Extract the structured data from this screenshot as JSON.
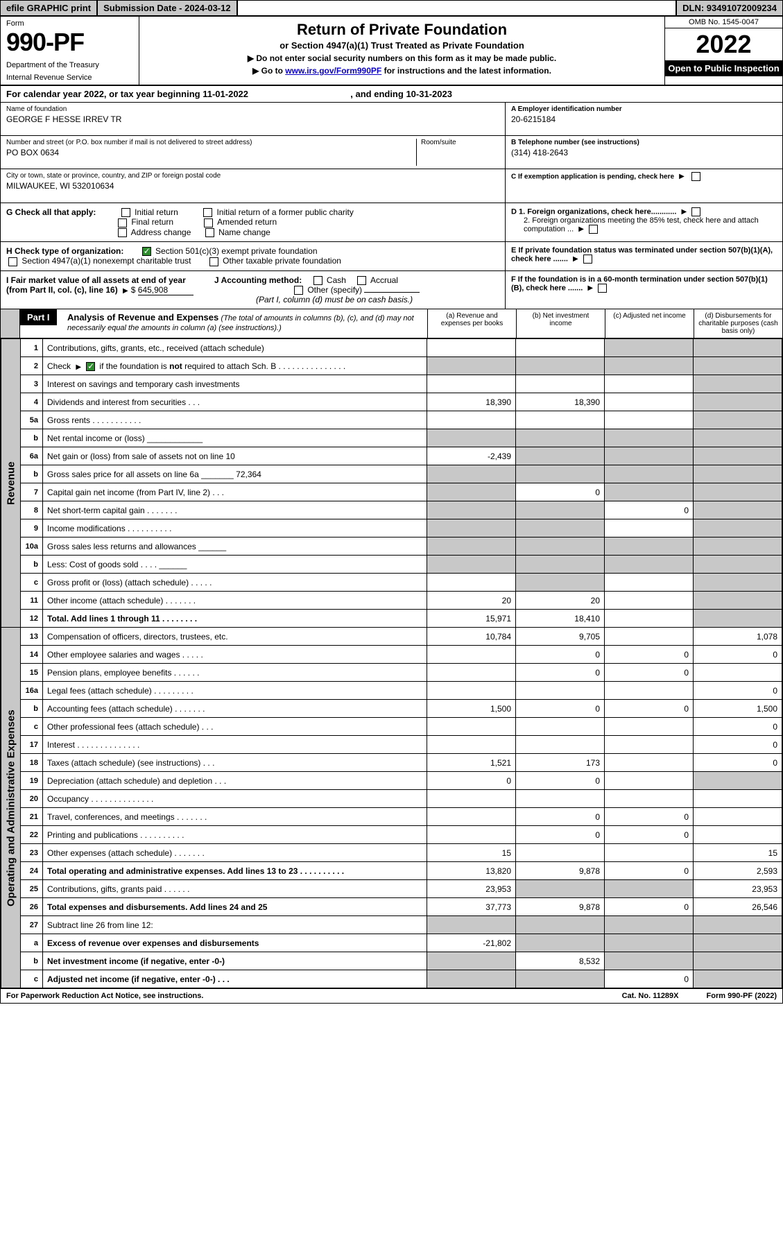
{
  "topbar": {
    "efile": "efile GRAPHIC print",
    "submission_label": "Submission Date - 2024-03-12",
    "dln": "DLN: 93491072009234"
  },
  "header": {
    "form_word": "Form",
    "form_no": "990-PF",
    "dept": "Department of the Treasury",
    "irs": "Internal Revenue Service",
    "title": "Return of Private Foundation",
    "subtitle": "or Section 4947(a)(1) Trust Treated as Private Foundation",
    "note1": "▶ Do not enter social security numbers on this form as it may be made public.",
    "note2_pre": "▶ Go to ",
    "note2_link": "www.irs.gov/Form990PF",
    "note2_post": " for instructions and the latest information.",
    "omb": "OMB No. 1545-0047",
    "year": "2022",
    "open": "Open to Public Inspection"
  },
  "cal_year": {
    "text_a": "For calendar year 2022, or tax year beginning ",
    "begin": "11-01-2022",
    "text_b": " , and ending ",
    "end": "10-31-2023"
  },
  "id": {
    "name_lbl": "Name of foundation",
    "name_val": "GEORGE F HESSE IRREV TR",
    "addr_lbl": "Number and street (or P.O. box number if mail is not delivered to street address)",
    "addr_val": "PO BOX 0634",
    "room_lbl": "Room/suite",
    "city_lbl": "City or town, state or province, country, and ZIP or foreign postal code",
    "city_val": "MILWAUKEE, WI  532010634",
    "ein_lbl": "A Employer identification number",
    "ein_val": "20-6215184",
    "tel_lbl": "B Telephone number (see instructions)",
    "tel_val": "(314) 418-2643",
    "c_lbl": "C If exemption application is pending, check here",
    "d1": "D 1. Foreign organizations, check here............",
    "d2": "2. Foreign organizations meeting the 85% test, check here and attach computation ...",
    "e": "E  If private foundation status was terminated under section 507(b)(1)(A), check here .......",
    "f": "F  If the foundation is in a 60-month termination under section 507(b)(1)(B), check here .......",
    "g_lbl": "G Check all that apply:",
    "g_opts": [
      "Initial return",
      "Initial return of a former public charity",
      "Final return",
      "Amended return",
      "Address change",
      "Name change"
    ],
    "h_lbl": "H Check type of organization:",
    "h1": "Section 501(c)(3) exempt private foundation",
    "h2": "Section 4947(a)(1) nonexempt charitable trust",
    "h3": "Other taxable private foundation",
    "i_lbl": "I Fair market value of all assets at end of year (from Part II, col. (c), line 16)",
    "i_val": "645,908",
    "j_lbl": "J Accounting method:",
    "j_cash": "Cash",
    "j_acc": "Accrual",
    "j_other": "Other (specify)",
    "j_note": "(Part I, column (d) must be on cash basis.)"
  },
  "part1": {
    "label": "Part I",
    "title": "Analysis of Revenue and Expenses",
    "title_note": "(The total of amounts in columns (b), (c), and (d) may not necessarily equal the amounts in column (a) (see instructions).)",
    "col_a": "(a)   Revenue and expenses per books",
    "col_b": "(b)   Net investment income",
    "col_c": "(c)   Adjusted net income",
    "col_d": "(d)   Disbursements for charitable purposes (cash basis only)",
    "side_rev": "Revenue",
    "side_exp": "Operating and Administrative Expenses"
  },
  "rows": [
    {
      "n": "1",
      "label": "Contributions, gifts, grants, etc., received (attach schedule)",
      "a": "",
      "b": "",
      "c": "s",
      "d": "s"
    },
    {
      "n": "2",
      "label": "Check ▶ ☑ if the foundation is not required to attach Sch. B      .   .   .   .   .   .   .   .   .   .   .   .   .   .   .",
      "a": "s",
      "b": "s",
      "c": "s",
      "d": "s",
      "chk": true
    },
    {
      "n": "3",
      "label": "Interest on savings and temporary cash investments",
      "a": "",
      "b": "",
      "c": "",
      "d": "s"
    },
    {
      "n": "4",
      "label": "Dividends and interest from securities    .   .   .",
      "a": "18,390",
      "b": "18,390",
      "c": "",
      "d": "s"
    },
    {
      "n": "5a",
      "label": "Gross rents    .   .   .   .   .   .   .   .   .   .   .",
      "a": "",
      "b": "",
      "c": "",
      "d": "s"
    },
    {
      "n": "b",
      "label": "Net rental income or (loss)  ____________",
      "a": "s",
      "b": "s",
      "c": "s",
      "d": "s"
    },
    {
      "n": "6a",
      "label": "Net gain or (loss) from sale of assets not on line 10",
      "a": "-2,439",
      "b": "s",
      "c": "s",
      "d": "s"
    },
    {
      "n": "b",
      "label": "Gross sales price for all assets on line 6a _______ 72,364",
      "a": "s",
      "b": "s",
      "c": "s",
      "d": "s"
    },
    {
      "n": "7",
      "label": "Capital gain net income (from Part IV, line 2)   .   .   .",
      "a": "s",
      "b": "0",
      "c": "s",
      "d": "s"
    },
    {
      "n": "8",
      "label": "Net short-term capital gain   .   .   .   .   .   .   .",
      "a": "s",
      "b": "s",
      "c": "0",
      "d": "s"
    },
    {
      "n": "9",
      "label": "Income modifications  .   .   .   .   .   .   .   .   .   .",
      "a": "s",
      "b": "s",
      "c": "",
      "d": "s"
    },
    {
      "n": "10a",
      "label": "Gross sales less returns and allowances  ______",
      "a": "s",
      "b": "s",
      "c": "s",
      "d": "s"
    },
    {
      "n": "b",
      "label": "Less: Cost of goods sold     .   .   .   .   ______",
      "a": "s",
      "b": "s",
      "c": "s",
      "d": "s"
    },
    {
      "n": "c",
      "label": "Gross profit or (loss) (attach schedule)    .   .   .   .   .",
      "a": "",
      "b": "s",
      "c": "",
      "d": "s"
    },
    {
      "n": "11",
      "label": "Other income (attach schedule)    .   .   .   .   .   .   .",
      "a": "20",
      "b": "20",
      "c": "",
      "d": "s"
    },
    {
      "n": "12",
      "label": "Total. Add lines 1 through 11   .   .   .   .   .   .   .   .",
      "a": "15,971",
      "b": "18,410",
      "c": "",
      "d": "s",
      "bold": true
    },
    {
      "n": "13",
      "label": "Compensation of officers, directors, trustees, etc.",
      "a": "10,784",
      "b": "9,705",
      "c": "",
      "d": "1,078"
    },
    {
      "n": "14",
      "label": "Other employee salaries and wages    .   .   .   .   .",
      "a": "",
      "b": "0",
      "c": "0",
      "d": "0"
    },
    {
      "n": "15",
      "label": "Pension plans, employee benefits   .   .   .   .   .   .",
      "a": "",
      "b": "0",
      "c": "0",
      "d": ""
    },
    {
      "n": "16a",
      "label": "Legal fees (attach schedule)  .   .   .   .   .   .   .   .   .",
      "a": "",
      "b": "",
      "c": "",
      "d": "0"
    },
    {
      "n": "b",
      "label": "Accounting fees (attach schedule)  .   .   .   .   .   .   .",
      "a": "1,500",
      "b": "0",
      "c": "0",
      "d": "1,500"
    },
    {
      "n": "c",
      "label": "Other professional fees (attach schedule)    .   .   .",
      "a": "",
      "b": "",
      "c": "",
      "d": "0"
    },
    {
      "n": "17",
      "label": "Interest  .   .   .   .   .   .   .   .   .   .   .   .   .   .",
      "a": "",
      "b": "",
      "c": "",
      "d": "0"
    },
    {
      "n": "18",
      "label": "Taxes (attach schedule) (see instructions)     .   .   .",
      "a": "1,521",
      "b": "173",
      "c": "",
      "d": "0"
    },
    {
      "n": "19",
      "label": "Depreciation (attach schedule) and depletion    .   .   .",
      "a": "0",
      "b": "0",
      "c": "",
      "d": "s"
    },
    {
      "n": "20",
      "label": "Occupancy  .   .   .   .   .   .   .   .   .   .   .   .   .   .",
      "a": "",
      "b": "",
      "c": "",
      "d": ""
    },
    {
      "n": "21",
      "label": "Travel, conferences, and meetings  .   .   .   .   .   .   .",
      "a": "",
      "b": "0",
      "c": "0",
      "d": ""
    },
    {
      "n": "22",
      "label": "Printing and publications  .   .   .   .   .   .   .   .   .   .",
      "a": "",
      "b": "0",
      "c": "0",
      "d": ""
    },
    {
      "n": "23",
      "label": "Other expenses (attach schedule)  .   .   .   .   .   .   .",
      "a": "15",
      "b": "",
      "c": "",
      "d": "15"
    },
    {
      "n": "24",
      "label": "Total operating and administrative expenses. Add lines 13 to 23   .   .   .   .   .   .   .   .   .   .",
      "a": "13,820",
      "b": "9,878",
      "c": "0",
      "d": "2,593",
      "bold": true
    },
    {
      "n": "25",
      "label": "Contributions, gifts, grants paid     .   .   .   .   .   .",
      "a": "23,953",
      "b": "s",
      "c": "s",
      "d": "23,953"
    },
    {
      "n": "26",
      "label": "Total expenses and disbursements. Add lines 24 and 25",
      "a": "37,773",
      "b": "9,878",
      "c": "0",
      "d": "26,546",
      "bold": true
    },
    {
      "n": "27",
      "label": "Subtract line 26 from line 12:",
      "a": "s",
      "b": "s",
      "c": "s",
      "d": "s"
    },
    {
      "n": "a",
      "label": "Excess of revenue over expenses and disbursements",
      "a": "-21,802",
      "b": "s",
      "c": "s",
      "d": "s",
      "bold": true
    },
    {
      "n": "b",
      "label": "Net investment income (if negative, enter -0-)",
      "a": "s",
      "b": "8,532",
      "c": "s",
      "d": "s",
      "bold": true
    },
    {
      "n": "c",
      "label": "Adjusted net income (if negative, enter -0-)   .   .   .",
      "a": "s",
      "b": "s",
      "c": "0",
      "d": "s",
      "bold": true
    }
  ],
  "footer": {
    "left": "For Paperwork Reduction Act Notice, see instructions.",
    "mid": "Cat. No. 11289X",
    "right": "Form 990-PF (2022)"
  }
}
